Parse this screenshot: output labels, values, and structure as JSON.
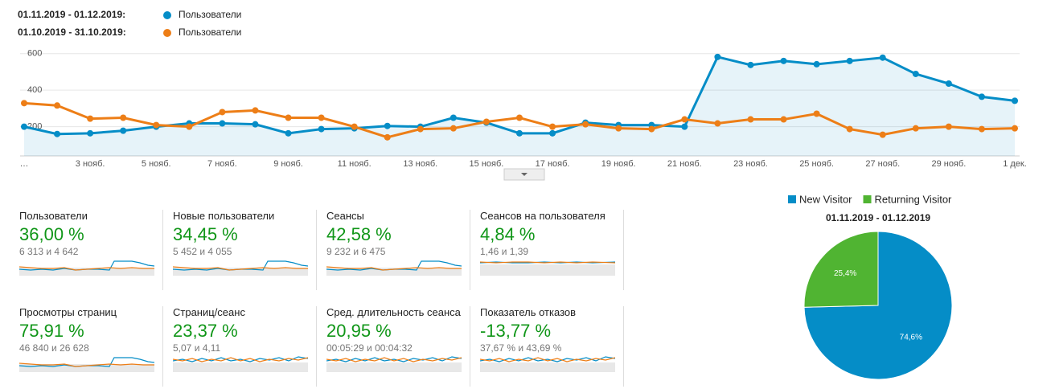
{
  "chart_data": [
    {
      "type": "line",
      "series": [
        {
          "name": "Пользователи",
          "period": "01.11.2019 - 01.12.2019:",
          "color": "#058dc7",
          "area": true,
          "values": [
            200,
            160,
            164,
            178,
            200,
            218,
            218,
            213,
            164,
            187,
            191,
            204,
            200,
            249,
            222,
            164,
            164,
            222,
            209,
            209,
            200,
            582,
            538,
            560,
            542,
            560,
            578,
            489,
            436,
            364,
            342
          ]
        },
        {
          "name": "Пользователи",
          "period": "01.10.2019 - 31.10.2019:",
          "color": "#ed7e17",
          "area": false,
          "values": [
            329,
            316,
            244,
            249,
            209,
            200,
            280,
            289,
            249,
            249,
            200,
            142,
            187,
            191,
            227,
            249,
            200,
            213,
            191,
            187,
            240,
            218,
            240,
            240,
            271,
            187,
            156,
            191,
            200,
            187,
            191
          ]
        }
      ],
      "categories": [
        "…",
        null,
        "3 нояб.",
        null,
        "5 нояб.",
        null,
        "7 нояб.",
        null,
        "9 нояб.",
        null,
        "11 нояб.",
        null,
        "13 нояб.",
        null,
        "15 нояб.",
        null,
        "17 нояб.",
        null,
        "19 нояб.",
        null,
        "21 нояб.",
        null,
        "23 нояб.",
        null,
        "25 нояб.",
        null,
        "27 нояб.",
        null,
        "29 нояб.",
        null,
        "1 дек."
      ],
      "ylim": [
        40,
        700
      ],
      "yticks": [
        200,
        400,
        600
      ],
      "grid": true
    },
    {
      "type": "pie",
      "title": "01.11.2019 - 01.12.2019",
      "categories": [
        "New Visitor",
        "Returning Visitor"
      ],
      "values": [
        74.6,
        25.4
      ],
      "value_labels": [
        "74,6%",
        "25,4%"
      ],
      "colors": [
        "#058dc7",
        "#50b432"
      ]
    }
  ],
  "metrics": [
    {
      "title": "Пользователи",
      "value": "36,00 %",
      "detail": "6 313 и 4 642"
    },
    {
      "title": "Новые пользователи",
      "value": "34,45 %",
      "detail": "5 452 и 4 055"
    },
    {
      "title": "Сеансы",
      "value": "42,58 %",
      "detail": "9 232 и 6 475"
    },
    {
      "title": "Сеансов на пользователя",
      "value": "4,84 %",
      "detail": "1,46 и 1,39"
    },
    {
      "title": "Просмотры страниц",
      "value": "75,91 %",
      "detail": "46 840 и 26 628"
    },
    {
      "title": "Страниц/сеанс",
      "value": "23,37 %",
      "detail": "5,07 и 4,11"
    },
    {
      "title": "Сред. длительность сеанса",
      "value": "20,95 %",
      "detail": "00:05:29 и 00:04:32"
    },
    {
      "title": "Показатель отказов",
      "value": "-13,77 %",
      "detail": "37,67 % и 43,69 %"
    }
  ]
}
